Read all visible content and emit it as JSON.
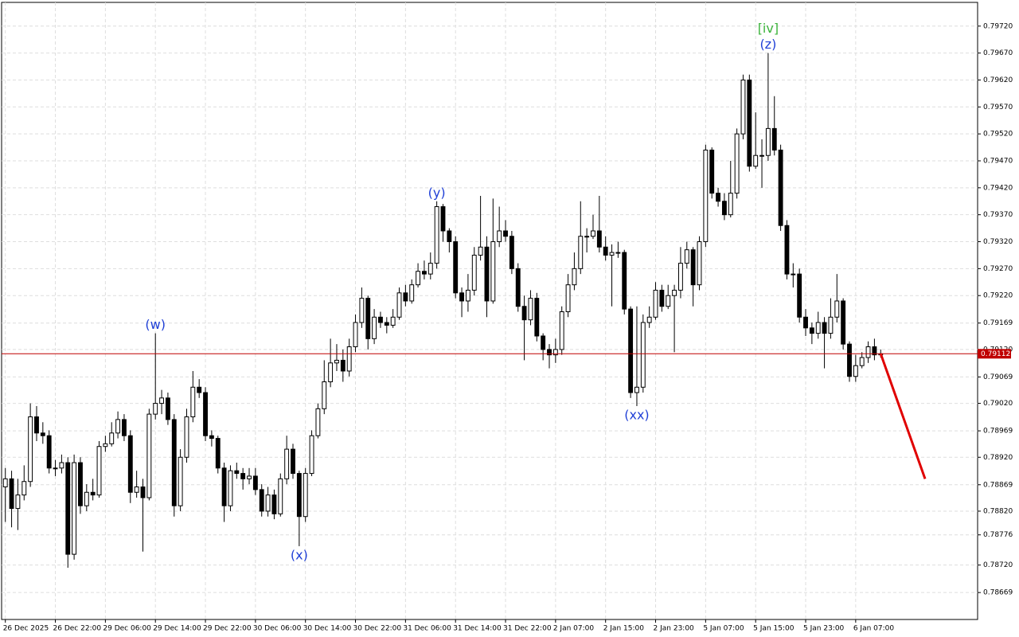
{
  "chart_data": {
    "type": "candlestick",
    "ylim": [
      0.78619,
      0.79764
    ],
    "yticks": [
      {
        "value": 0.7972,
        "label": "0.79720"
      },
      {
        "value": 0.7967,
        "label": "0.79670"
      },
      {
        "value": 0.7962,
        "label": "0.79620"
      },
      {
        "value": 0.7957,
        "label": "0.79570"
      },
      {
        "value": 0.7952,
        "label": "0.79520"
      },
      {
        "value": 0.7947,
        "label": "0.79470"
      },
      {
        "value": 0.7942,
        "label": "0.79420"
      },
      {
        "value": 0.7937,
        "label": "0.79370"
      },
      {
        "value": 0.7932,
        "label": "0.79320"
      },
      {
        "value": 0.7927,
        "label": "0.79270"
      },
      {
        "value": 0.7922,
        "label": "0.79220"
      },
      0.79169,
      {
        "value": 0.7912,
        "label": "0.79120"
      },
      0.79069,
      {
        "value": 0.7902,
        "label": "0.79020"
      },
      0.78969,
      {
        "value": 0.7892,
        "label": "0.78920"
      },
      0.78869,
      {
        "value": 0.7882,
        "label": "0.78820"
      },
      0.78776,
      {
        "value": 0.7872,
        "label": "0.78720"
      },
      0.78669
    ],
    "xlim": [
      -0.6,
      155.5
    ],
    "xticks": [
      {
        "value": 0,
        "label": "26 Dec 2025"
      },
      {
        "value": 8,
        "label": "26 Dec 22:00"
      },
      {
        "value": 16,
        "label": "29 Dec 06:00"
      },
      {
        "value": 24,
        "label": "29 Dec 14:00"
      },
      {
        "value": 32,
        "label": "29 Dec 22:00"
      },
      {
        "value": 40,
        "label": "30 Dec 06:00"
      },
      {
        "value": 48,
        "label": "30 Dec 14:00"
      },
      {
        "value": 56,
        "label": "30 Dec 22:00"
      },
      {
        "value": 64,
        "label": "31 Dec 06:00"
      },
      {
        "value": 72,
        "label": "31 Dec 14:00"
      },
      {
        "value": 80,
        "label": "31 Dec 22:00"
      },
      {
        "value": 88,
        "label": "2 Jan 07:00"
      },
      {
        "value": 96,
        "label": "2 Jan 15:00"
      },
      {
        "value": 104,
        "label": "2 Jan 23:00"
      },
      {
        "value": 112,
        "label": "5 Jan 07:00"
      },
      {
        "value": 120,
        "label": "5 Jan 15:00"
      },
      {
        "value": 128,
        "label": "5 Jan 23:00"
      },
      {
        "value": 136,
        "label": "6 Jan 07:00"
      }
    ],
    "grid": true,
    "up_color": "#ffffff",
    "down_color": "#000000",
    "open": [
      0.78865,
      0.7888,
      0.78825,
      0.7885,
      0.78875,
      0.78995,
      0.78965,
      0.7896,
      0.789,
      0.789,
      0.7891,
      0.7874,
      0.7891,
      0.7883,
      0.78855,
      0.7885,
      0.7894,
      0.78945,
      0.78965,
      0.7899,
      0.7896,
      0.78855,
      0.78865,
      0.78845,
      0.79,
      0.7902,
      0.7903,
      0.7899,
      0.7883,
      0.7892,
      0.78995,
      0.7905,
      0.7904,
      0.7896,
      0.78955,
      0.789,
      0.7883,
      0.78895,
      0.7889,
      0.7888,
      0.78885,
      0.7886,
      0.7882,
      0.7885,
      0.78815,
      0.7888,
      0.78935,
      0.7889,
      0.7881,
      0.7889,
      0.7896,
      0.7901,
      0.7906,
      0.79095,
      0.791,
      0.7908,
      0.79125,
      0.7917,
      0.79215,
      0.7914,
      0.7918,
      0.7917,
      0.79165,
      0.7918,
      0.79225,
      0.7921,
      0.7924,
      0.79265,
      0.7926,
      0.7928,
      0.79385,
      0.7934,
      0.7932,
      0.79225,
      0.7921,
      0.7923,
      0.79295,
      0.7931,
      0.7921,
      0.7932,
      0.7934,
      0.7933,
      0.7927,
      0.792,
      0.79175,
      0.79215,
      0.79145,
      0.7912,
      0.7911,
      0.7912,
      0.7919,
      0.7924,
      0.7927,
      0.7933,
      0.7933,
      0.7934,
      0.7931,
      0.79295,
      0.793,
      0.793,
      0.79195,
      0.7904,
      0.7905,
      0.7917,
      0.7918,
      0.7923,
      0.792,
      0.7922,
      0.7923,
      0.7928,
      0.79305,
      0.7924,
      0.7932,
      0.7949,
      0.7941,
      0.79395,
      0.7937,
      0.7941,
      0.7952,
      0.7962,
      0.7946,
      0.7948,
      0.7948,
      0.7953,
      0.7949,
      0.7935,
      0.7926,
      0.7926,
      0.7918,
      0.7916,
      0.7915,
      0.7917,
      0.7915,
      0.7918,
      0.7921,
      0.7913,
      0.7907,
      0.7909,
      0.79105,
      0.79125,
      0.7911
    ],
    "high": [
      0.789,
      0.78895,
      0.7888,
      0.78905,
      0.7902,
      0.79015,
      0.78985,
      0.7897,
      0.78915,
      0.78925,
      0.7892,
      0.78925,
      0.7892,
      0.7887,
      0.7888,
      0.7895,
      0.7896,
      0.78985,
      0.79005,
      0.79,
      0.7897,
      0.78895,
      0.7888,
      0.7901,
      0.7915,
      0.79045,
      0.7904,
      0.79,
      0.78935,
      0.7901,
      0.7908,
      0.79065,
      0.7905,
      0.7897,
      0.7896,
      0.7891,
      0.78905,
      0.7891,
      0.789,
      0.789,
      0.789,
      0.7887,
      0.78865,
      0.7886,
      0.7889,
      0.7896,
      0.78945,
      0.78895,
      0.789,
      0.7897,
      0.7902,
      0.791,
      0.7914,
      0.7913,
      0.7912,
      0.7914,
      0.79185,
      0.79235,
      0.7922,
      0.79195,
      0.7919,
      0.7918,
      0.79195,
      0.79235,
      0.7924,
      0.7925,
      0.7928,
      0.79285,
      0.793,
      0.79395,
      0.7939,
      0.79345,
      0.7933,
      0.79235,
      0.7926,
      0.7931,
      0.79405,
      0.7933,
      0.794,
      0.79385,
      0.7936,
      0.7934,
      0.7928,
      0.7922,
      0.7923,
      0.79225,
      0.7915,
      0.7913,
      0.7914,
      0.792,
      0.7926,
      0.793,
      0.79395,
      0.79345,
      0.7937,
      0.79405,
      0.7933,
      0.79315,
      0.7932,
      0.79305,
      0.792,
      0.792,
      0.79185,
      0.792,
      0.79245,
      0.7924,
      0.7924,
      0.7924,
      0.7931,
      0.7932,
      0.7931,
      0.7933,
      0.795,
      0.79495,
      0.7942,
      0.7941,
      0.7947,
      0.7953,
      0.7963,
      0.7963,
      0.7956,
      0.7951,
      0.7967,
      0.7959,
      0.795,
      0.7936,
      0.7928,
      0.7927,
      0.79195,
      0.7917,
      0.7919,
      0.7918,
      0.79215,
      0.7926,
      0.79215,
      0.79135,
      0.7911,
      0.79115,
      0.79135,
      0.7914,
      0.7912
    ],
    "low": [
      0.788,
      0.7879,
      0.78785,
      0.7884,
      0.78865,
      0.7895,
      0.78945,
      0.7889,
      0.78885,
      0.7889,
      0.78715,
      0.7873,
      0.78815,
      0.7882,
      0.7884,
      0.78845,
      0.7893,
      0.7894,
      0.78955,
      0.7895,
      0.78835,
      0.78845,
      0.78745,
      0.7884,
      0.7899,
      0.79,
      0.7898,
      0.7881,
      0.7882,
      0.7891,
      0.78985,
      0.7903,
      0.7895,
      0.7894,
      0.7889,
      0.788,
      0.7882,
      0.7888,
      0.7886,
      0.7887,
      0.7885,
      0.7881,
      0.7881,
      0.78805,
      0.7881,
      0.7887,
      0.7888,
      0.78755,
      0.788,
      0.78885,
      0.78955,
      0.79,
      0.7905,
      0.7908,
      0.7906,
      0.7907,
      0.79115,
      0.7916,
      0.7912,
      0.7913,
      0.7916,
      0.7915,
      0.7916,
      0.79175,
      0.792,
      0.79205,
      0.79235,
      0.7925,
      0.7925,
      0.7927,
      0.7932,
      0.793,
      0.79215,
      0.7918,
      0.7919,
      0.7922,
      0.79285,
      0.7918,
      0.79205,
      0.7931,
      0.7932,
      0.7926,
      0.7919,
      0.791,
      0.79165,
      0.79135,
      0.791,
      0.79085,
      0.79095,
      0.7911,
      0.7918,
      0.7923,
      0.7926,
      0.793,
      0.79325,
      0.793,
      0.79285,
      0.792,
      0.7929,
      0.79185,
      0.7903,
      0.79015,
      0.7904,
      0.7916,
      0.79175,
      0.7919,
      0.79195,
      0.79115,
      0.79215,
      0.7927,
      0.792,
      0.7923,
      0.7931,
      0.794,
      0.79385,
      0.7936,
      0.79365,
      0.794,
      0.7951,
      0.7945,
      0.79455,
      0.7942,
      0.7947,
      0.7948,
      0.7934,
      0.7925,
      0.79235,
      0.7917,
      0.79145,
      0.7913,
      0.7914,
      0.79085,
      0.7914,
      0.7917,
      0.7912,
      0.7906,
      0.7906,
      0.79085,
      0.79095,
      0.791,
      0.79105
    ],
    "close": [
      0.7888,
      0.78825,
      0.7885,
      0.78875,
      0.78995,
      0.78965,
      0.7896,
      0.789,
      0.789,
      0.7891,
      0.7874,
      0.7891,
      0.7883,
      0.78855,
      0.7885,
      0.7894,
      0.78945,
      0.78965,
      0.7899,
      0.7896,
      0.78855,
      0.78865,
      0.78845,
      0.79,
      0.7902,
      0.7903,
      0.7899,
      0.7883,
      0.7892,
      0.78995,
      0.7905,
      0.7904,
      0.7896,
      0.78955,
      0.789,
      0.7883,
      0.78895,
      0.7889,
      0.7888,
      0.78885,
      0.7886,
      0.7882,
      0.7885,
      0.78815,
      0.7888,
      0.78935,
      0.7889,
      0.7881,
      0.7889,
      0.7896,
      0.7901,
      0.7906,
      0.79095,
      0.791,
      0.7908,
      0.79125,
      0.7917,
      0.79215,
      0.7914,
      0.7918,
      0.7917,
      0.79165,
      0.7918,
      0.79225,
      0.7921,
      0.7924,
      0.79265,
      0.7926,
      0.7928,
      0.79385,
      0.7934,
      0.7932,
      0.79225,
      0.7921,
      0.7923,
      0.79295,
      0.7931,
      0.7921,
      0.7932,
      0.7934,
      0.7933,
      0.7927,
      0.792,
      0.79175,
      0.79215,
      0.79145,
      0.7912,
      0.7911,
      0.7912,
      0.7919,
      0.7924,
      0.7927,
      0.7933,
      0.7933,
      0.7934,
      0.7931,
      0.79295,
      0.793,
      0.793,
      0.79195,
      0.7904,
      0.7905,
      0.7917,
      0.7918,
      0.7923,
      0.792,
      0.7922,
      0.7923,
      0.7928,
      0.79305,
      0.7924,
      0.7932,
      0.7949,
      0.7941,
      0.79395,
      0.7937,
      0.7941,
      0.7952,
      0.7962,
      0.7946,
      0.7948,
      0.7948,
      0.7953,
      0.7949,
      0.7935,
      0.7926,
      0.7926,
      0.7918,
      0.7916,
      0.7915,
      0.7917,
      0.7915,
      0.7918,
      0.7921,
      0.7913,
      0.7907,
      0.7909,
      0.79105,
      0.79125,
      0.7911,
      0.79112
    ],
    "current_price": {
      "value": 0.79112,
      "label": "0.79112",
      "color": "#c00000"
    },
    "forecast": {
      "x": [
        140,
        147.1
      ],
      "y": [
        0.79112,
        0.7888
      ],
      "color": "#e00000"
    },
    "annotations": [
      {
        "text": "(w)",
        "candle": 24,
        "side": "above",
        "color": "#1f3fd6"
      },
      {
        "text": "(x)",
        "candle": 47,
        "side": "below",
        "color": "#1f3fd6"
      },
      {
        "text": "(y)",
        "candle": 69,
        "side": "above",
        "color": "#1f3fd6"
      },
      {
        "text": "(xx)",
        "candle": 101,
        "side": "below",
        "color": "#1f3fd6"
      },
      {
        "text": "(z)",
        "candle": 122,
        "side": "above",
        "color": "#1f3fd6"
      },
      {
        "text": "[iv]",
        "candle": 122,
        "side": "above",
        "color": "#3cb43c"
      }
    ]
  }
}
